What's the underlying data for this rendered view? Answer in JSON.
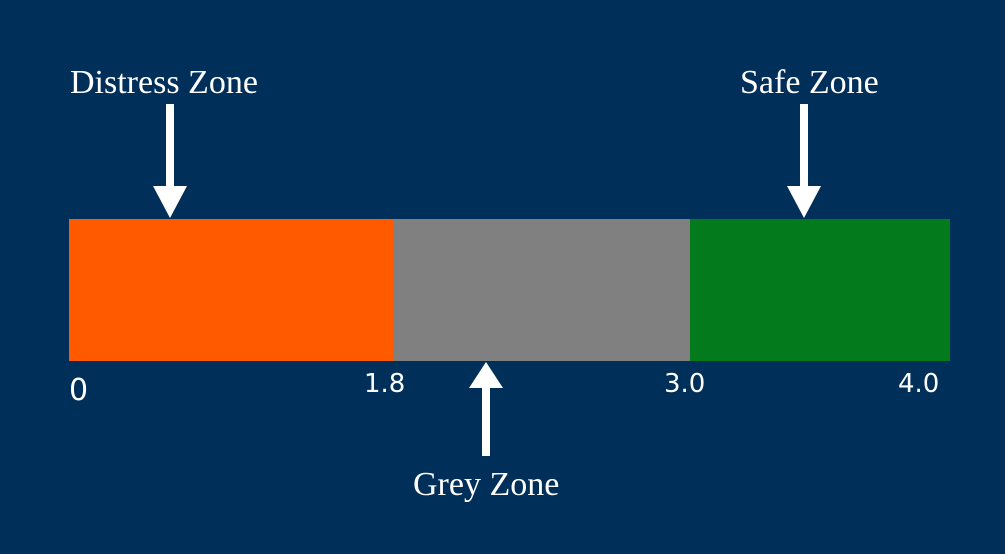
{
  "scale": {
    "min": 0,
    "max": 4.0,
    "ticks": [
      {
        "value": 0,
        "label": "0"
      },
      {
        "value": 1.8,
        "label": "1.8"
      },
      {
        "value": 3.0,
        "label": "3.0"
      },
      {
        "value": 4.0,
        "label": "4.0"
      }
    ]
  },
  "zones": [
    {
      "id": "distress",
      "label": "Distress Zone",
      "from": 0,
      "to": 1.8,
      "color": "#ff5a00"
    },
    {
      "id": "grey",
      "label": "Grey Zone",
      "from": 1.8,
      "to": 3.0,
      "color": "#808080"
    },
    {
      "id": "safe",
      "label": "Safe Zone",
      "from": 3.0,
      "to": 4.0,
      "color": "#037b1c"
    }
  ],
  "colors": {
    "background": "#002f5a",
    "text": "#ffffff",
    "arrow": "#ffffff"
  },
  "icons": {
    "arrow_down": "arrow-down-icon",
    "arrow_up": "arrow-up-icon"
  }
}
